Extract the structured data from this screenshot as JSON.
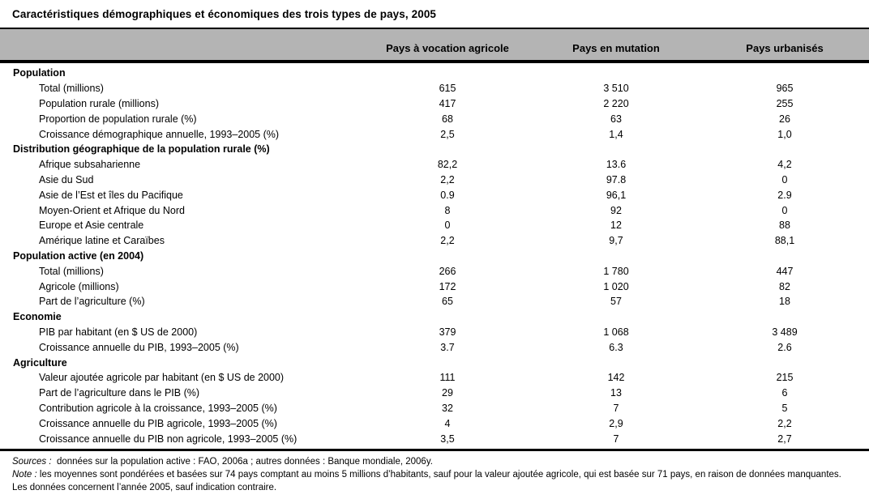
{
  "title": "Caractéristiques démographiques et économiques des trois types de pays, 2005",
  "columns": [
    "Pays à vocation agricole",
    "Pays en mutation",
    "Pays urbanisés"
  ],
  "sections": [
    {
      "header": "Population",
      "rows": [
        {
          "label": "Total (millions)",
          "values": [
            "615",
            "3 510",
            "965"
          ]
        },
        {
          "label": "Population rurale (millions)",
          "values": [
            "417",
            "2 220",
            "255"
          ]
        },
        {
          "label": "Proportion de population rurale (%)",
          "values": [
            "68",
            "63",
            "26"
          ]
        },
        {
          "label": "Croissance démographique annuelle, 1993–2005 (%)",
          "values": [
            "2,5",
            "1,4",
            "1,0"
          ]
        }
      ]
    },
    {
      "header": "Distribution géographique de la population rurale (%)",
      "rows": [
        {
          "label": "Afrique subsaharienne",
          "values": [
            "82,2",
            "13.6",
            "4,2"
          ]
        },
        {
          "label": "Asie du Sud",
          "values": [
            "2,2",
            "97.8",
            "0"
          ]
        },
        {
          "label": "Asie de l’Est et îles du Pacifique",
          "values": [
            "0.9",
            "96,1",
            "2.9"
          ]
        },
        {
          "label": "Moyen-Orient et Afrique du Nord",
          "values": [
            "8",
            "92",
            "0"
          ]
        },
        {
          "label": "Europe et Asie centrale",
          "values": [
            "0",
            "12",
            "88"
          ]
        },
        {
          "label": "Amérique latine et Caraïbes",
          "values": [
            "2,2",
            "9,7",
            "88,1"
          ]
        }
      ]
    },
    {
      "header": "Population active (en 2004)",
      "rows": [
        {
          "label": "Total (millions)",
          "values": [
            "266",
            "1 780",
            "447"
          ]
        },
        {
          "label": "Agricole (millions)",
          "values": [
            "172",
            "1 020",
            "82"
          ]
        },
        {
          "label": "Part de l’agriculture (%)",
          "values": [
            "65",
            "57",
            "18"
          ]
        }
      ]
    },
    {
      "header": "Economie",
      "rows": [
        {
          "label": "PIB par habitant (en $ US de 2000)",
          "values": [
            "379",
            "1 068",
            "3 489"
          ]
        },
        {
          "label": "Croissance annuelle du PIB, 1993–2005 (%)",
          "values": [
            "3.7",
            "6.3",
            "2.6"
          ]
        }
      ]
    },
    {
      "header": "Agriculture",
      "rows": [
        {
          "label": "Valeur ajoutée agricole par habitant (en $ US de 2000)",
          "values": [
            "111",
            "142",
            "215"
          ]
        },
        {
          "label": "Part de l’agriculture dans le PIB (%)",
          "values": [
            "29",
            "13",
            "6"
          ]
        },
        {
          "label": "Contribution agricole à la croissance, 1993–2005 (%)",
          "values": [
            "32",
            "7",
            "5"
          ]
        },
        {
          "label": "Croissance annuelle du PIB agricole, 1993–2005 (%)",
          "values": [
            "4",
            "2,9",
            "2,2"
          ]
        },
        {
          "label": "Croissance annuelle du PIB non agricole, 1993–2005 (%)",
          "values": [
            "3,5",
            "7",
            "2,7"
          ]
        }
      ]
    }
  ],
  "footer": {
    "sources_label": "Sources :",
    "sources_text": "données sur la population active : FAO, 2006a ; autres données : Banque mondiale, 2006y.",
    "note_label": "Note :",
    "note_text": "les moyennes sont pondérées et basées sur 74 pays comptant au moins 5 millions d’habitants, sauf pour la valeur ajoutée agricole, qui est basée sur 71 pays, en raison de données manquantes. Les données concernent l’année 2005, sauf indication contraire."
  },
  "colors": {
    "header_band": "#b4b4b4",
    "rule": "#000000",
    "background": "#ffffff",
    "text": "#000000"
  }
}
